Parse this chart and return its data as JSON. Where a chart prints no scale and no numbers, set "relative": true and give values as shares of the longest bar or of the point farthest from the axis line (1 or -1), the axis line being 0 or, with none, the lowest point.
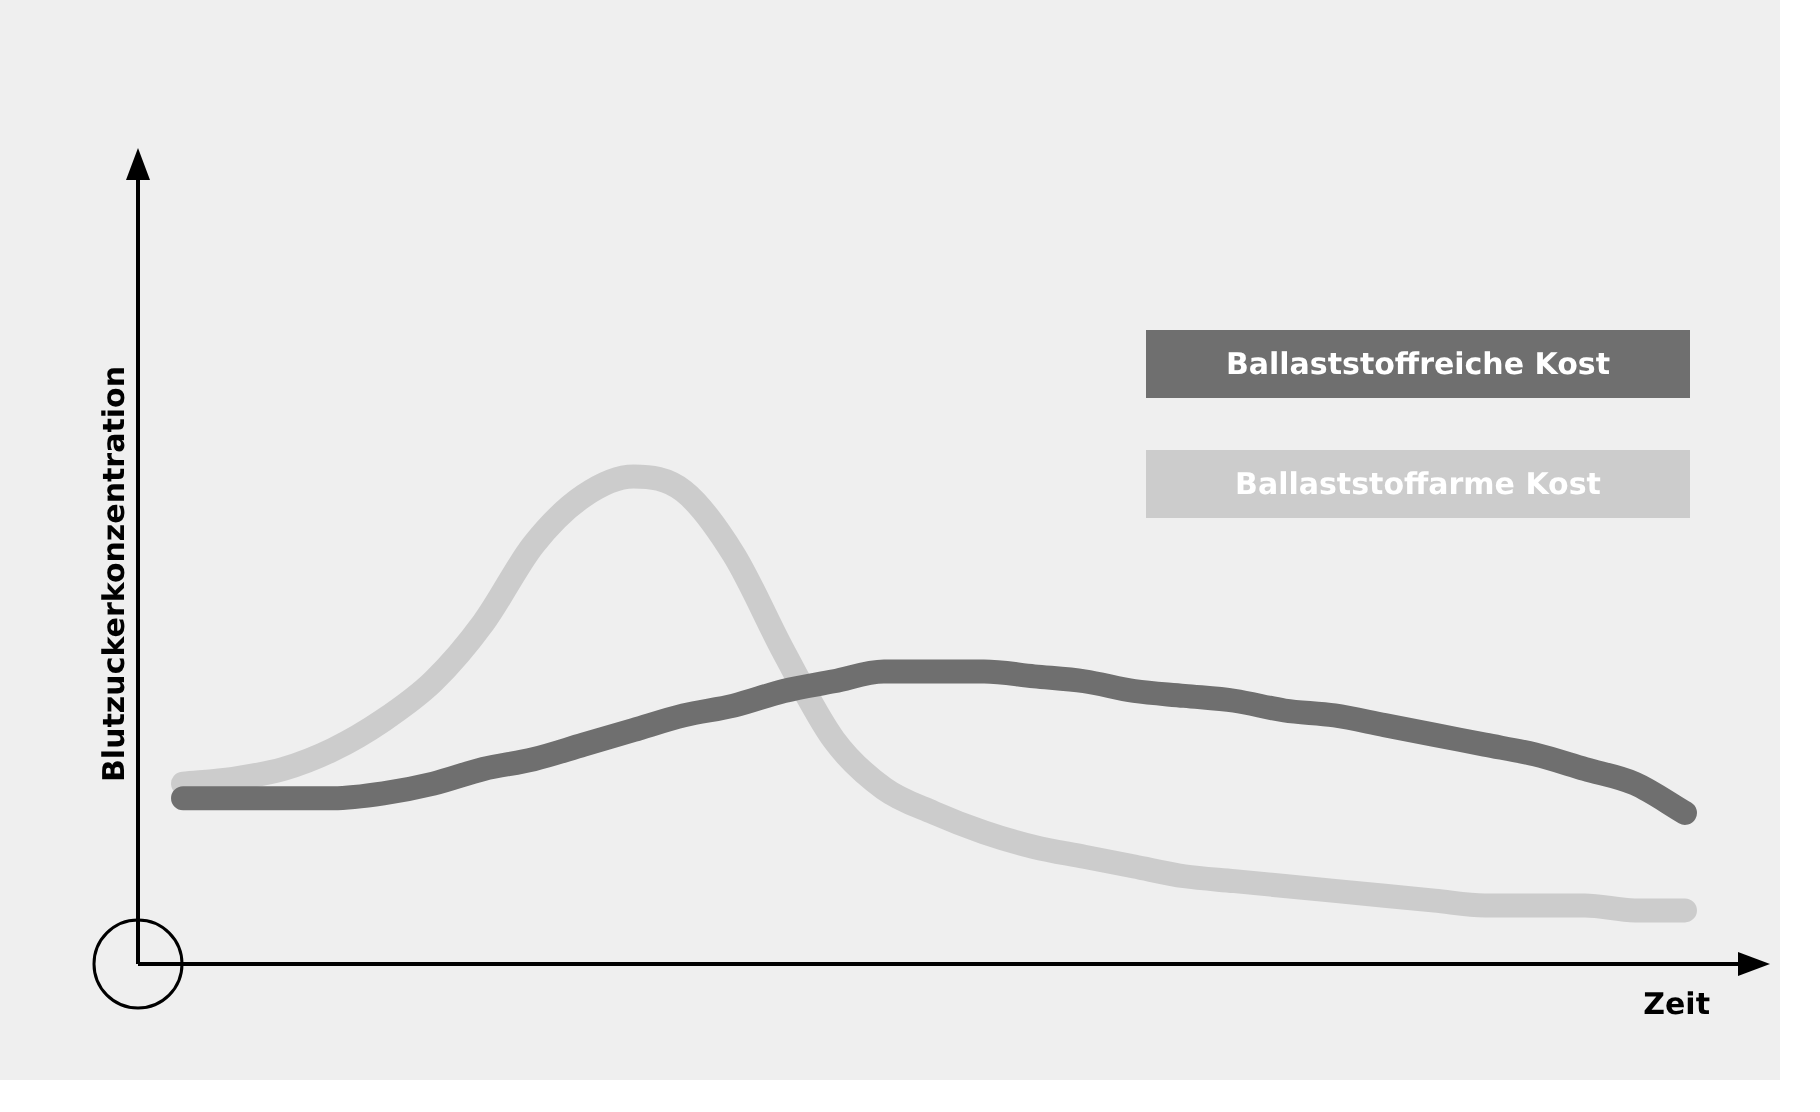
{
  "chart_data": {
    "type": "line",
    "relative": true,
    "xlabel": "Zeit",
    "ylabel": "Blutzuckerkonzentration",
    "legend": "top right",
    "marker": "none",
    "grid": false,
    "categories": [
      null,
      null,
      null,
      null,
      null,
      null,
      null,
      null,
      null,
      null,
      null,
      null,
      null,
      null,
      null,
      null,
      null,
      null,
      null,
      null,
      null,
      null,
      null,
      null,
      null,
      null,
      null,
      null,
      null,
      null,
      null
    ],
    "series": [
      {
        "name": "Ballaststoffreiche Kost",
        "color": "#6f6f6f",
        "values": [
          0.34,
          0.34,
          0.34,
          0.34,
          0.35,
          0.37,
          0.4,
          0.42,
          0.45,
          0.48,
          0.51,
          0.53,
          0.56,
          0.58,
          0.6,
          0.6,
          0.6,
          0.59,
          0.58,
          0.56,
          0.55,
          0.54,
          0.52,
          0.51,
          0.49,
          0.47,
          0.45,
          0.43,
          0.4,
          0.37,
          0.31
        ]
      },
      {
        "name": "Ballaststoffarme Kost",
        "color": "#cccccc",
        "values": [
          0.37,
          0.38,
          0.4,
          0.44,
          0.5,
          0.58,
          0.7,
          0.86,
          0.96,
          1,
          0.97,
          0.84,
          0.64,
          0.46,
          0.36,
          0.31,
          0.27,
          0.24,
          0.22,
          0.2,
          0.18,
          0.17,
          0.16,
          0.15,
          0.14,
          0.13,
          0.12,
          0.12,
          0.12,
          0.11,
          0.11
        ]
      }
    ]
  }
}
